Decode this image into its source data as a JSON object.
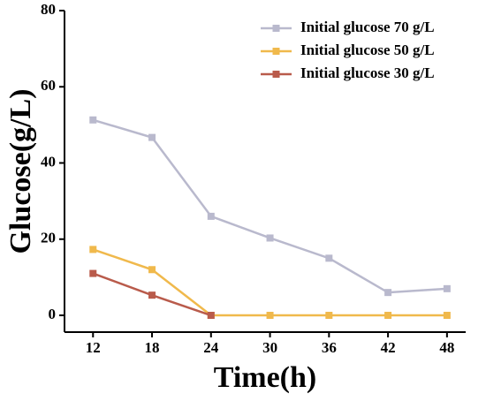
{
  "chart_data": {
    "type": "line",
    "x_label": "Time(h)",
    "y_label": "Glucose(g/L)",
    "x": [
      12,
      18,
      24,
      30,
      36,
      42,
      48
    ],
    "series": [
      {
        "name": "Initial glucose 70 g/L",
        "color": "#b9b9cd",
        "values": [
          51.3,
          46.7,
          26,
          20.3,
          15,
          6,
          7
        ]
      },
      {
        "name": "Initial glucose 50 g/L",
        "color": "#f0b94c",
        "values": [
          17.3,
          12,
          0,
          0,
          0,
          0,
          0
        ]
      },
      {
        "name": "Initial glucose 30 g/L",
        "color": "#b95b4b",
        "values": [
          11,
          5.3,
          0,
          null,
          null,
          null,
          null
        ]
      }
    ],
    "xlim": [
      9.1,
      49.9
    ],
    "xticks": [
      12,
      18,
      24,
      30,
      36,
      42,
      48
    ],
    "ylim": [
      -4.4,
      80
    ],
    "yticks": [
      0,
      20,
      40,
      60,
      80
    ],
    "legend": "upper right",
    "grid": false
  }
}
